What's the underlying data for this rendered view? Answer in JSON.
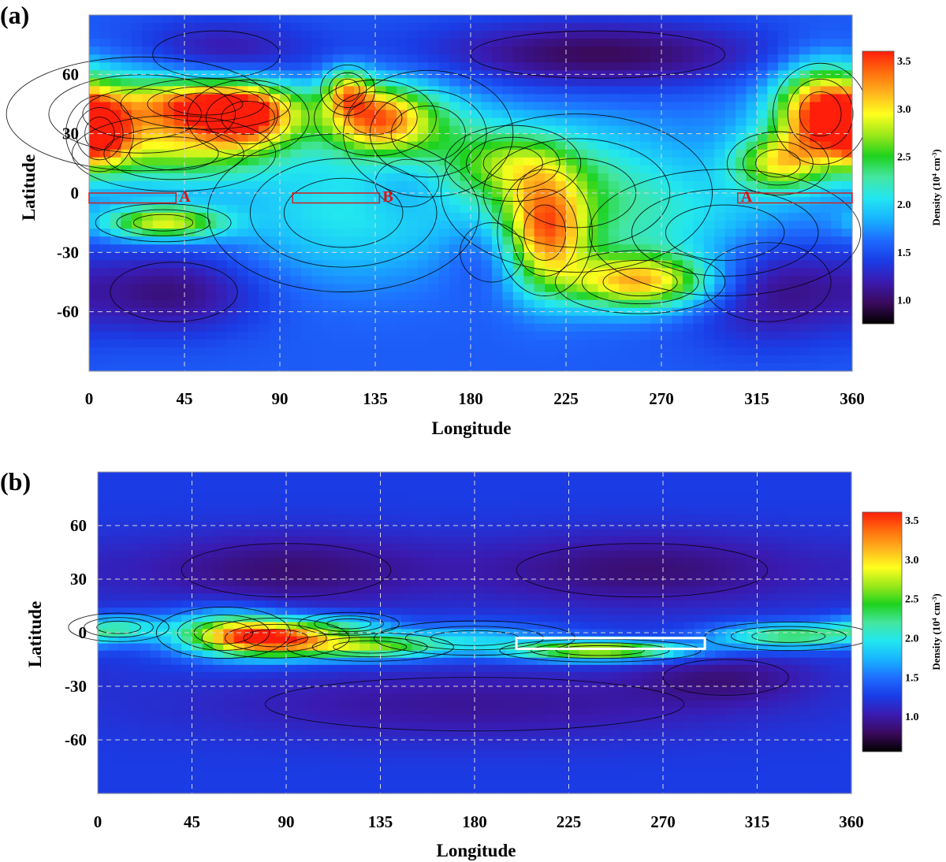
{
  "chart_data": [
    {
      "panel_label": "(a)",
      "type": "heatmap",
      "xlabel": "Longitude",
      "ylabel": "Latitude",
      "xlim": [
        0,
        360
      ],
      "ylim": [
        -90,
        90
      ],
      "x_ticks": [
        "0",
        "45",
        "90",
        "135",
        "180",
        "225",
        "270",
        "315",
        "360"
      ],
      "y_ticks": [
        "60",
        "30",
        "0",
        "-30",
        "-60"
      ],
      "grid": true,
      "contours": true,
      "colorbar": {
        "label": "Density (10",
        "label_sup": "4",
        "label_unit": " cm",
        "label_unit_sup": "-3",
        "label_close": ")",
        "range": [
          0.75,
          3.6
        ],
        "ticks": [
          "3.5",
          "3.0",
          "2.5",
          "2.0",
          "1.5",
          "1.0"
        ],
        "colors": [
          "#000000",
          "#3a0a5c",
          "#3a1ab0",
          "#1a3ce6",
          "#1e6cff",
          "#18b4ff",
          "#22e6f0",
          "#44e6a0",
          "#1ed21e",
          "#9ae81a",
          "#ffff1e",
          "#ffb41e",
          "#ff6e0e",
          "#ff1e0a"
        ]
      },
      "markers": [
        {
          "label": "A",
          "lon": 41,
          "lat": -2
        },
        {
          "label": "B",
          "lon": 137,
          "lat": -2
        },
        {
          "label": "A",
          "lon": 306,
          "lat": -2
        }
      ],
      "highlights": [
        {
          "lon": [
            0,
            41
          ],
          "lat": [
            -5,
            0
          ]
        },
        {
          "lon": [
            96,
            137
          ],
          "lat": [
            -5,
            0
          ]
        },
        {
          "lon": [
            306,
            360
          ],
          "lat": [
            -5,
            0
          ]
        }
      ],
      "blobs": [
        {
          "lon": 25,
          "lat": 40,
          "sx": 40,
          "sy": 18,
          "v": 1.1
        },
        {
          "lon": 5,
          "lat": 30,
          "sx": 10,
          "sy": 12,
          "v": 1.2
        },
        {
          "lon": 75,
          "lat": 38,
          "sx": 18,
          "sy": 12,
          "v": 1.4
        },
        {
          "lon": 55,
          "lat": 45,
          "sx": 25,
          "sy": 8,
          "v": 0.9
        },
        {
          "lon": 135,
          "lat": 38,
          "sx": 18,
          "sy": 12,
          "v": 1.5
        },
        {
          "lon": 122,
          "lat": 52,
          "sx": 8,
          "sy": 8,
          "v": 1.0
        },
        {
          "lon": 40,
          "lat": 20,
          "sx": 30,
          "sy": 12,
          "v": 0.6
        },
        {
          "lon": 35,
          "lat": -15,
          "sx": 20,
          "sy": 6,
          "v": 1.3
        },
        {
          "lon": 215,
          "lat": -20,
          "sx": 14,
          "sy": 20,
          "v": 1.4
        },
        {
          "lon": 260,
          "lat": -45,
          "sx": 25,
          "sy": 10,
          "v": 1.5
        },
        {
          "lon": 230,
          "lat": 0,
          "sx": 40,
          "sy": 25,
          "v": 0.7
        },
        {
          "lon": 345,
          "lat": 40,
          "sx": 14,
          "sy": 16,
          "v": 1.5
        },
        {
          "lon": 325,
          "lat": 15,
          "sx": 15,
          "sy": 10,
          "v": 1.1
        },
        {
          "lon": 200,
          "lat": 15,
          "sx": 20,
          "sy": 12,
          "v": 0.6
        },
        {
          "lon": 120,
          "lat": -10,
          "sx": 40,
          "sy": 25,
          "v": 0.5
        },
        {
          "lon": 300,
          "lat": -20,
          "sx": 40,
          "sy": 20,
          "v": 0.4
        },
        {
          "lon": 160,
          "lat": 30,
          "sx": 25,
          "sy": 20,
          "v": 0.5
        }
      ],
      "low_zones": [
        {
          "lon": 60,
          "lat": 70,
          "sx": 30,
          "sy": 12,
          "v": -0.5
        },
        {
          "lon": 240,
          "lat": 70,
          "sx": 60,
          "sy": 12,
          "v": -0.6
        },
        {
          "lon": 40,
          "lat": -50,
          "sx": 30,
          "sy": 15,
          "v": -0.5
        },
        {
          "lon": 320,
          "lat": -45,
          "sx": 30,
          "sy": 20,
          "v": -0.6
        },
        {
          "lon": 150,
          "lat": 5,
          "sx": 15,
          "sy": 12,
          "v": -0.3
        },
        {
          "lon": 190,
          "lat": -30,
          "sx": 15,
          "sy": 15,
          "v": -0.3
        }
      ]
    },
    {
      "panel_label": "(b)",
      "type": "heatmap",
      "xlabel": "Longitude",
      "ylabel": "Latitude",
      "xlim": [
        0,
        360
      ],
      "ylim": [
        -90,
        90
      ],
      "x_ticks": [
        "0",
        "45",
        "90",
        "135",
        "180",
        "225",
        "270",
        "315",
        "360"
      ],
      "y_ticks": [
        "60",
        "30",
        "0",
        "-30",
        "-60"
      ],
      "grid": true,
      "contours": true,
      "colorbar": {
        "label": "Density (10",
        "label_sup": "4",
        "label_unit": " cm",
        "label_unit_sup": "-3",
        "label_close": ")",
        "range": [
          0.55,
          3.6
        ],
        "ticks": [
          "3.5",
          "3.0",
          "2.5",
          "2.0",
          "1.5",
          "1.0"
        ],
        "colors": [
          "#000000",
          "#3a0a5c",
          "#3a1ab0",
          "#1a3ce6",
          "#1e6cff",
          "#18b4ff",
          "#22e6f0",
          "#44e6a0",
          "#1ed21e",
          "#9ae81a",
          "#ffff1e",
          "#ffb41e",
          "#ff6e0e",
          "#ff1e0a"
        ]
      },
      "white_box": {
        "lon": [
          200,
          290
        ],
        "lat": [
          -9,
          -3
        ]
      },
      "blobs": [
        {
          "lon": 85,
          "lat": -3,
          "sx": 22,
          "sy": 7,
          "v": 2.0
        },
        {
          "lon": 130,
          "lat": -8,
          "sx": 25,
          "sy": 5,
          "v": 1.2
        },
        {
          "lon": 60,
          "lat": 0,
          "sx": 20,
          "sy": 9,
          "v": 1.0
        },
        {
          "lon": 240,
          "lat": -10,
          "sx": 30,
          "sy": 4,
          "v": 1.6
        },
        {
          "lon": 330,
          "lat": -2,
          "sx": 25,
          "sy": 5,
          "v": 1.1
        },
        {
          "lon": 10,
          "lat": 3,
          "sx": 15,
          "sy": 5,
          "v": 0.7
        },
        {
          "lon": 180,
          "lat": -3,
          "sx": 30,
          "sy": 6,
          "v": 0.5
        },
        {
          "lon": 120,
          "lat": 5,
          "sx": 15,
          "sy": 4,
          "v": 0.5
        }
      ],
      "low_zones": [
        {
          "lon": 90,
          "lat": 35,
          "sx": 50,
          "sy": 15,
          "v": -0.4
        },
        {
          "lon": 260,
          "lat": 35,
          "sx": 60,
          "sy": 15,
          "v": -0.4
        },
        {
          "lon": 180,
          "lat": -40,
          "sx": 100,
          "sy": 15,
          "v": -0.3
        },
        {
          "lon": 300,
          "lat": -25,
          "sx": 30,
          "sy": 10,
          "v": -0.3
        }
      ]
    }
  ]
}
